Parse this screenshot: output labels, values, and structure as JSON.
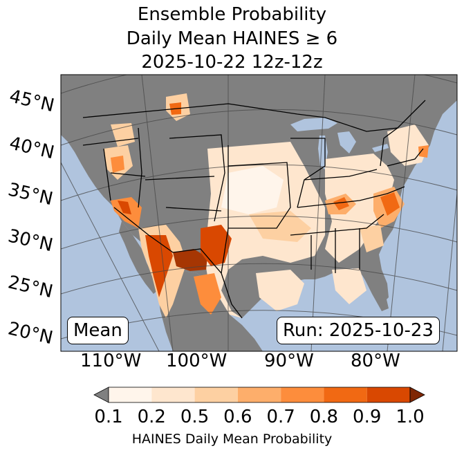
{
  "title": {
    "line1": "Ensemble Probability",
    "line2": "Daily Mean HAINES ≥ 6",
    "line3": "2025-10-22 12z-12z"
  },
  "map": {
    "ocean_color": "#b0c4de",
    "land_color": "#808080",
    "latitude_labels": [
      "45°N",
      "40°N",
      "35°N",
      "30°N",
      "25°N",
      "20°N"
    ],
    "longitude_labels": [
      "110°W",
      "100°W",
      "90°W",
      "80°W"
    ],
    "stat_label": "Mean",
    "run_label": "Run: 2025-10-23"
  },
  "colorbar": {
    "ticks": [
      "0.1",
      "0.2",
      "0.5",
      "0.6",
      "0.7",
      "0.8",
      "0.9",
      "1.0"
    ],
    "colors": [
      "#fff5eb",
      "#fee6ce",
      "#fdd0a2",
      "#fdae6b",
      "#fd8d3c",
      "#f16913",
      "#d94801",
      "#a63603"
    ],
    "under_color": "#808080",
    "over_color": "#7f2704",
    "label": "HAINES Daily Mean Probability"
  }
}
